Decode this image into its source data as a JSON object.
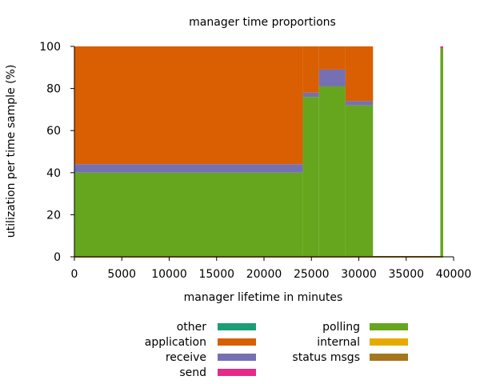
{
  "chart_data": {
    "type": "area",
    "title": "manager time proportions",
    "xlabel": "manager lifetime in minutes",
    "ylabel": "utilization per time sample (%)",
    "xlim": [
      0,
      40000
    ],
    "ylim": [
      0,
      100
    ],
    "xticks": [
      0,
      5000,
      10000,
      15000,
      20000,
      25000,
      30000,
      35000,
      40000
    ],
    "yticks": [
      0,
      20,
      40,
      60,
      80,
      100
    ],
    "stack_order": [
      "polling",
      "receive",
      "application",
      "other",
      "send",
      "internal",
      "status msgs"
    ],
    "series": [
      {
        "name": "other",
        "color": "#1b9e77",
        "segments": [
          [
            0,
            24100,
            0
          ],
          [
            24100,
            25800,
            0
          ],
          [
            25800,
            28600,
            0
          ],
          [
            28600,
            31500,
            0
          ],
          [
            38600,
            38900,
            0
          ]
        ]
      },
      {
        "name": "application",
        "color": "#d95f02",
        "segments": [
          [
            0,
            24100,
            56
          ],
          [
            24100,
            25800,
            22
          ],
          [
            25800,
            28600,
            11
          ],
          [
            28600,
            31500,
            26
          ],
          [
            38600,
            38900,
            0
          ]
        ]
      },
      {
        "name": "receive",
        "color": "#7570b3",
        "segments": [
          [
            0,
            24100,
            4
          ],
          [
            24100,
            25800,
            2
          ],
          [
            25800,
            28600,
            8
          ],
          [
            28600,
            31500,
            2
          ],
          [
            38600,
            38900,
            0
          ]
        ]
      },
      {
        "name": "send",
        "color": "#e7298a",
        "segments": [
          [
            0,
            24100,
            0
          ],
          [
            24100,
            25800,
            0
          ],
          [
            25800,
            28600,
            0
          ],
          [
            28600,
            31500,
            0
          ],
          [
            38600,
            38900,
            1
          ]
        ]
      },
      {
        "name": "polling",
        "color": "#66a61e",
        "segments": [
          [
            0,
            24100,
            40
          ],
          [
            24100,
            25800,
            76
          ],
          [
            25800,
            28600,
            81
          ],
          [
            28600,
            31500,
            72
          ],
          [
            38600,
            38900,
            99
          ]
        ]
      },
      {
        "name": "internal",
        "color": "#e6ab02",
        "segments": [
          [
            0,
            24100,
            0
          ],
          [
            24100,
            25800,
            0
          ],
          [
            25800,
            28600,
            0
          ],
          [
            28600,
            31500,
            0
          ],
          [
            38600,
            38900,
            0
          ]
        ]
      },
      {
        "name": "status msgs",
        "color": "#a6761d",
        "segments": [
          [
            0,
            24100,
            0
          ],
          [
            24100,
            25800,
            0
          ],
          [
            25800,
            28600,
            0
          ],
          [
            28600,
            31500,
            0
          ],
          [
            31500,
            38600,
            0
          ],
          [
            38600,
            38900,
            0
          ]
        ]
      }
    ],
    "legend": {
      "placement": "bottom",
      "columns": [
        [
          "other",
          "application",
          "receive",
          "send"
        ],
        [
          "polling",
          "internal",
          "status msgs"
        ]
      ]
    }
  }
}
